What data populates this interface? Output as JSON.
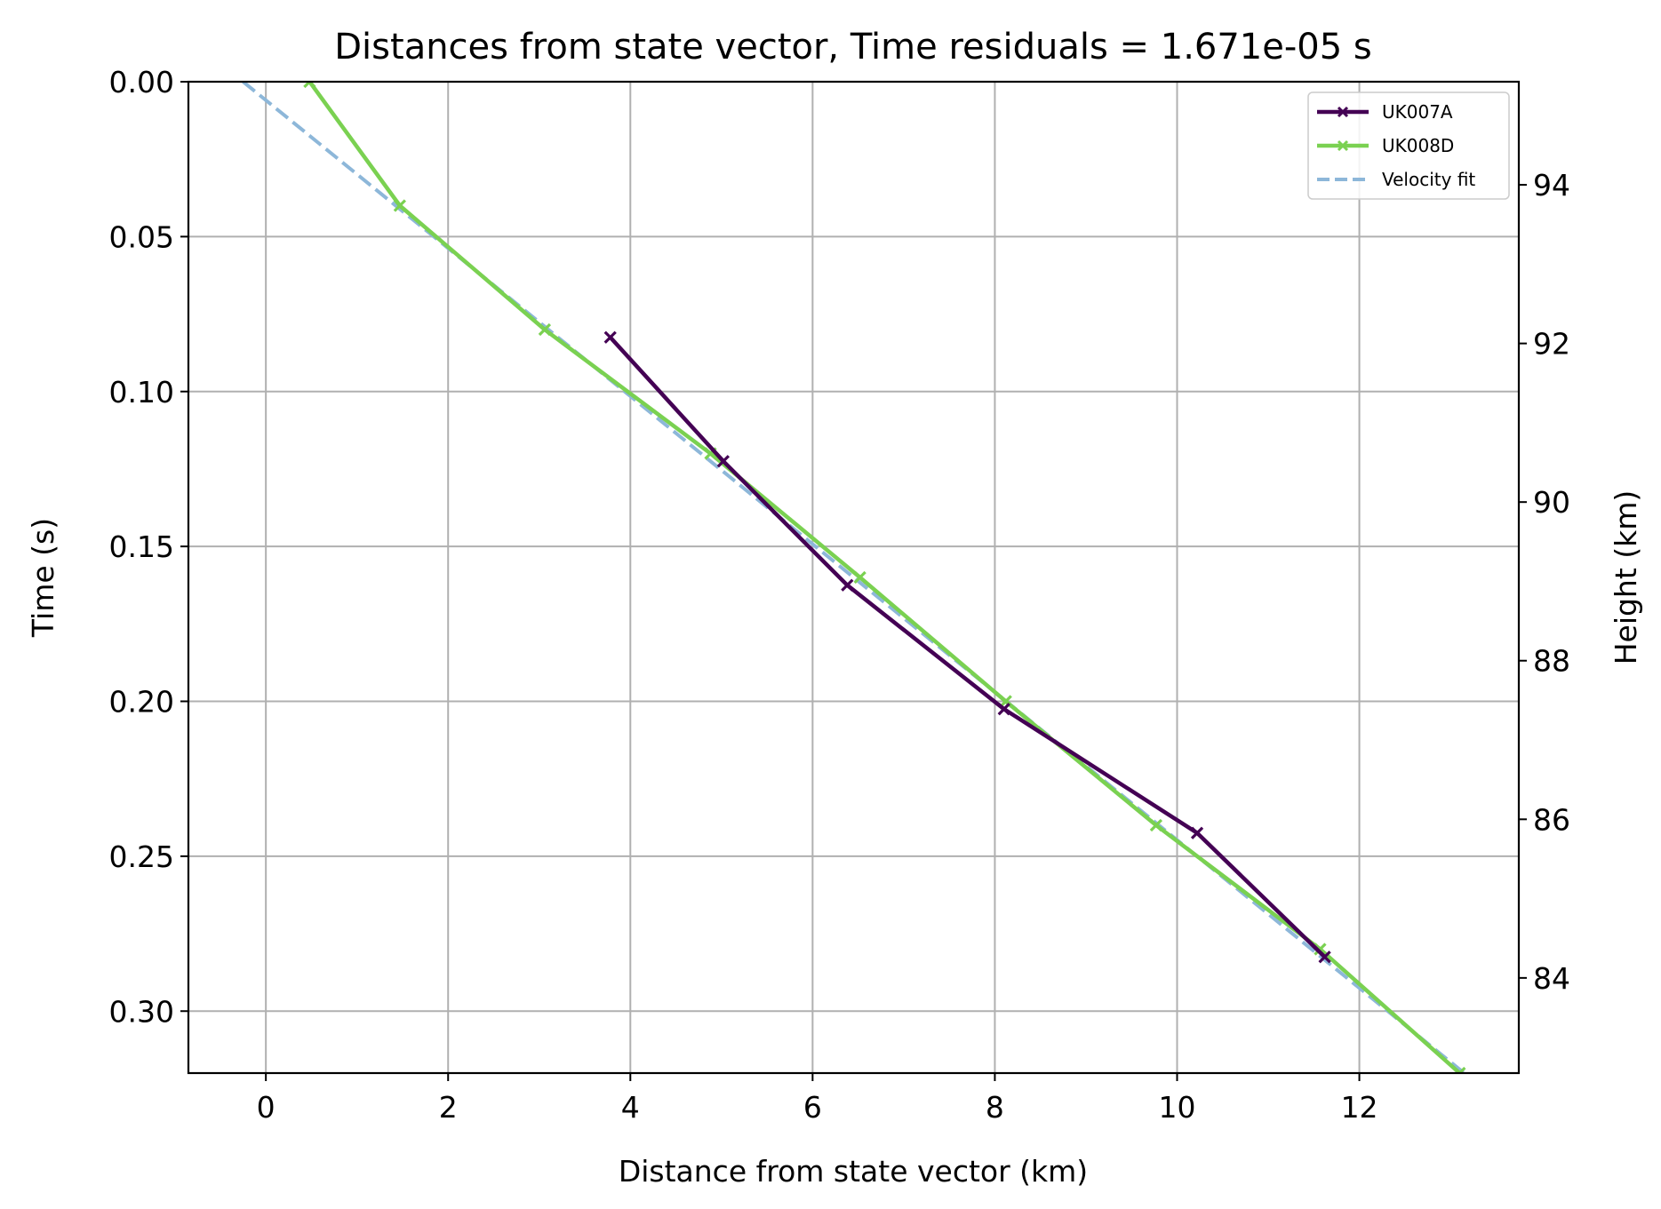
{
  "chart_data": {
    "type": "line",
    "title": "Distances from state vector, Time residuals = 1.671e-05 s",
    "xlabel": "Distance from state vector (km)",
    "ylabel": "Time (s)",
    "y2label": "Height (km)",
    "xlim": [
      -0.85,
      13.75
    ],
    "ylim": [
      0.32,
      0.0
    ],
    "y2lim": [
      82.8,
      95.3
    ],
    "x_ticks": [
      0,
      2,
      4,
      6,
      8,
      10,
      12
    ],
    "x_tick_labels": [
      "0",
      "2",
      "4",
      "6",
      "8",
      "10",
      "12"
    ],
    "y_ticks": [
      0.0,
      0.05,
      0.1,
      0.15,
      0.2,
      0.25,
      0.3
    ],
    "y_tick_labels": [
      "0.00",
      "0.05",
      "0.10",
      "0.15",
      "0.20",
      "0.25",
      "0.30"
    ],
    "y2_ticks": [
      94,
      92,
      90,
      88,
      86,
      84
    ],
    "y2_tick_labels": [
      "94",
      "92",
      "90",
      "88",
      "86",
      "84"
    ],
    "grid": true,
    "legend_position": "top-right",
    "series": [
      {
        "name": "UK007A",
        "color": "#440154",
        "style": "solid",
        "marker": "x",
        "x": [
          3.78,
          5.02,
          6.38,
          8.1,
          10.22,
          11.62
        ],
        "y": [
          0.0825,
          0.1225,
          0.1625,
          0.2025,
          0.2425,
          0.2825
        ]
      },
      {
        "name": "UK008D",
        "color": "#7ad151",
        "style": "solid",
        "marker": "x",
        "x": [
          0.48,
          1.47,
          3.06,
          4.88,
          6.52,
          8.12,
          9.77,
          11.57,
          13.1
        ],
        "y": [
          0.0,
          0.04,
          0.08,
          0.12,
          0.16,
          0.2,
          0.24,
          0.28,
          0.32
        ]
      },
      {
        "name": "Velocity fit",
        "color": "#8db7d9",
        "style": "dashed",
        "marker": "none",
        "x": [
          -0.25,
          13.15
        ],
        "y": [
          0.0,
          0.32
        ]
      }
    ]
  }
}
